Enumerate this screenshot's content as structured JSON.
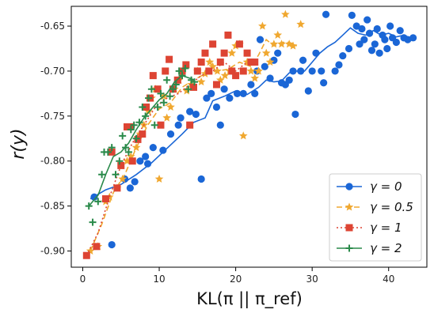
{
  "chart_data": {
    "type": "scatter",
    "xlabel": "KL(π || π_ref)",
    "ylabel": "r(y)",
    "xlim": [
      -1.5,
      45
    ],
    "ylim": [
      -0.918,
      -0.628
    ],
    "x_ticks": [
      0,
      10,
      20,
      30,
      40
    ],
    "y_ticks": [
      -0.9,
      -0.85,
      -0.8,
      -0.75,
      -0.7,
      -0.65
    ],
    "x_tick_labels": [
      "0",
      "10",
      "20",
      "30",
      "40"
    ],
    "y_tick_labels": [
      "-0.90",
      "-0.85",
      "-0.80",
      "-0.75",
      "-0.70",
      "-0.65"
    ],
    "grid": false,
    "legend_position": "bottom-right",
    "series": [
      {
        "name": "γ = 0",
        "color": "#1a66d6",
        "marker": "circle",
        "line_style": "solid",
        "points": [
          [
            1.5,
            -0.84
          ],
          [
            3.8,
            -0.893
          ],
          [
            5.5,
            -0.82
          ],
          [
            6.2,
            -0.83
          ],
          [
            6.8,
            -0.823
          ],
          [
            7.5,
            -0.8
          ],
          [
            8.2,
            -0.795
          ],
          [
            8.5,
            -0.803
          ],
          [
            9.2,
            -0.785
          ],
          [
            10.5,
            -0.788
          ],
          [
            11.5,
            -0.77
          ],
          [
            12.5,
            -0.76
          ],
          [
            12.8,
            -0.752
          ],
          [
            14.0,
            -0.745
          ],
          [
            14.8,
            -0.748
          ],
          [
            15.5,
            -0.82
          ],
          [
            16.2,
            -0.73
          ],
          [
            16.8,
            -0.725
          ],
          [
            17.5,
            -0.74
          ],
          [
            18.0,
            -0.76
          ],
          [
            18.5,
            -0.72
          ],
          [
            19.2,
            -0.73
          ],
          [
            20.2,
            -0.725
          ],
          [
            21.0,
            -0.725
          ],
          [
            22.0,
            -0.715
          ],
          [
            22.5,
            -0.725
          ],
          [
            22.8,
            -0.7
          ],
          [
            23.2,
            -0.665
          ],
          [
            23.8,
            -0.695
          ],
          [
            24.5,
            -0.708
          ],
          [
            25.0,
            -0.688
          ],
          [
            25.5,
            -0.68
          ],
          [
            26.0,
            -0.713
          ],
          [
            26.5,
            -0.715
          ],
          [
            27.0,
            -0.71
          ],
          [
            27.5,
            -0.7
          ],
          [
            27.8,
            -0.748
          ],
          [
            28.5,
            -0.7
          ],
          [
            28.8,
            -0.688
          ],
          [
            29.5,
            -0.722
          ],
          [
            30.0,
            -0.7
          ],
          [
            30.5,
            -0.68
          ],
          [
            31.2,
            -0.7
          ],
          [
            31.5,
            -0.713
          ],
          [
            31.8,
            -0.637
          ],
          [
            33.0,
            -0.7
          ],
          [
            33.5,
            -0.693
          ],
          [
            34.0,
            -0.683
          ],
          [
            34.8,
            -0.675
          ],
          [
            35.2,
            -0.638
          ],
          [
            35.8,
            -0.65
          ],
          [
            36.2,
            -0.67
          ],
          [
            36.5,
            -0.653
          ],
          [
            36.8,
            -0.665
          ],
          [
            37.2,
            -0.643
          ],
          [
            37.5,
            -0.658
          ],
          [
            37.8,
            -0.677
          ],
          [
            38.2,
            -0.67
          ],
          [
            38.5,
            -0.653
          ],
          [
            38.8,
            -0.68
          ],
          [
            39.2,
            -0.66
          ],
          [
            39.5,
            -0.665
          ],
          [
            39.8,
            -0.675
          ],
          [
            40.2,
            -0.65
          ],
          [
            40.5,
            -0.663
          ],
          [
            41.0,
            -0.668
          ],
          [
            41.5,
            -0.655
          ],
          [
            42.0,
            -0.663
          ],
          [
            42.5,
            -0.665
          ],
          [
            43.2,
            -0.663
          ]
        ],
        "line": [
          [
            1.0,
            -0.842
          ],
          [
            3.0,
            -0.832
          ],
          [
            5.0,
            -0.826
          ],
          [
            7.0,
            -0.815
          ],
          [
            9.0,
            -0.802
          ],
          [
            11.0,
            -0.786
          ],
          [
            13.0,
            -0.77
          ],
          [
            14.5,
            -0.757
          ],
          [
            16.0,
            -0.752
          ],
          [
            17.0,
            -0.733
          ],
          [
            18.5,
            -0.728
          ],
          [
            20.0,
            -0.722
          ],
          [
            21.5,
            -0.726
          ],
          [
            23.0,
            -0.718
          ],
          [
            24.0,
            -0.71
          ],
          [
            25.0,
            -0.712
          ],
          [
            26.0,
            -0.711
          ],
          [
            27.0,
            -0.702
          ],
          [
            28.0,
            -0.7
          ],
          [
            29.0,
            -0.7
          ],
          [
            30.0,
            -0.69
          ],
          [
            31.0,
            -0.68
          ],
          [
            32.0,
            -0.673
          ],
          [
            33.0,
            -0.668
          ],
          [
            34.0,
            -0.66
          ],
          [
            35.0,
            -0.652
          ],
          [
            36.0,
            -0.658
          ],
          [
            37.0,
            -0.66
          ],
          [
            38.0,
            -0.655
          ],
          [
            39.0,
            -0.66
          ],
          [
            40.0,
            -0.658
          ],
          [
            41.0,
            -0.662
          ],
          [
            42.0,
            -0.66
          ],
          [
            43.0,
            -0.664
          ]
        ]
      },
      {
        "name": "γ = 0.5",
        "color": "#f0a830",
        "marker": "star",
        "line_style": "dashed",
        "points": [
          [
            1.0,
            -0.9
          ],
          [
            2.0,
            -0.895
          ],
          [
            3.0,
            -0.845
          ],
          [
            3.5,
            -0.84
          ],
          [
            4.5,
            -0.83
          ],
          [
            5.2,
            -0.82
          ],
          [
            5.8,
            -0.8
          ],
          [
            6.3,
            -0.795
          ],
          [
            7.0,
            -0.785
          ],
          [
            7.5,
            -0.77
          ],
          [
            8.0,
            -0.76
          ],
          [
            8.6,
            -0.745
          ],
          [
            9.0,
            -0.73
          ],
          [
            9.5,
            -0.72
          ],
          [
            10.0,
            -0.82
          ],
          [
            10.6,
            -0.728
          ],
          [
            11.0,
            -0.752
          ],
          [
            11.5,
            -0.74
          ],
          [
            12.0,
            -0.72
          ],
          [
            12.6,
            -0.71
          ],
          [
            13.0,
            -0.703
          ],
          [
            13.6,
            -0.722
          ],
          [
            14.2,
            -0.715
          ],
          [
            15.0,
            -0.7
          ],
          [
            15.5,
            -0.712
          ],
          [
            16.0,
            -0.703
          ],
          [
            16.6,
            -0.69
          ],
          [
            17.0,
            -0.695
          ],
          [
            17.6,
            -0.7
          ],
          [
            18.0,
            -0.71
          ],
          [
            18.6,
            -0.705
          ],
          [
            19.2,
            -0.7
          ],
          [
            19.5,
            -0.68
          ],
          [
            20.0,
            -0.672
          ],
          [
            20.5,
            -0.67
          ],
          [
            21.0,
            -0.772
          ],
          [
            21.5,
            -0.69
          ],
          [
            22.0,
            -0.7
          ],
          [
            22.5,
            -0.708
          ],
          [
            23.0,
            -0.7
          ],
          [
            23.5,
            -0.65
          ],
          [
            24.0,
            -0.68
          ],
          [
            24.5,
            -0.69
          ],
          [
            25.0,
            -0.67
          ],
          [
            25.5,
            -0.66
          ],
          [
            26.0,
            -0.67
          ],
          [
            26.5,
            -0.637
          ],
          [
            27.0,
            -0.67
          ],
          [
            27.5,
            -0.672
          ],
          [
            28.5,
            -0.648
          ]
        ],
        "line": [
          [
            1.0,
            -0.9
          ],
          [
            2.5,
            -0.87
          ],
          [
            4.0,
            -0.835
          ],
          [
            5.5,
            -0.815
          ],
          [
            7.0,
            -0.785
          ],
          [
            8.5,
            -0.76
          ],
          [
            10.0,
            -0.742
          ],
          [
            11.5,
            -0.735
          ],
          [
            13.0,
            -0.718
          ],
          [
            14.5,
            -0.71
          ],
          [
            16.0,
            -0.703
          ],
          [
            17.5,
            -0.7
          ],
          [
            19.0,
            -0.698
          ],
          [
            20.5,
            -0.69
          ],
          [
            22.0,
            -0.695
          ],
          [
            23.0,
            -0.682
          ],
          [
            24.0,
            -0.665
          ],
          [
            25.0,
            -0.672
          ],
          [
            26.0,
            -0.668
          ],
          [
            27.0,
            -0.668
          ],
          [
            28.0,
            -0.672
          ]
        ]
      },
      {
        "name": "γ = 1",
        "color": "#dd4433",
        "marker": "square",
        "line_style": "dotted",
        "points": [
          [
            0.5,
            -0.905
          ],
          [
            1.8,
            -0.895
          ],
          [
            3.0,
            -0.842
          ],
          [
            3.8,
            -0.79
          ],
          [
            4.5,
            -0.83
          ],
          [
            5.0,
            -0.805
          ],
          [
            5.8,
            -0.762
          ],
          [
            6.2,
            -0.762
          ],
          [
            6.5,
            -0.8
          ],
          [
            7.2,
            -0.776
          ],
          [
            7.8,
            -0.77
          ],
          [
            8.3,
            -0.74
          ],
          [
            8.8,
            -0.73
          ],
          [
            9.2,
            -0.705
          ],
          [
            9.8,
            -0.72
          ],
          [
            10.2,
            -0.76
          ],
          [
            10.8,
            -0.7
          ],
          [
            11.3,
            -0.687
          ],
          [
            11.8,
            -0.72
          ],
          [
            12.4,
            -0.71
          ],
          [
            13.0,
            -0.7
          ],
          [
            13.5,
            -0.693
          ],
          [
            14.0,
            -0.76
          ],
          [
            14.5,
            -0.718
          ],
          [
            15.0,
            -0.7
          ],
          [
            15.5,
            -0.69
          ],
          [
            16.0,
            -0.68
          ],
          [
            16.5,
            -0.7
          ],
          [
            17.0,
            -0.67
          ],
          [
            17.5,
            -0.715
          ],
          [
            18.0,
            -0.69
          ],
          [
            18.5,
            -0.68
          ],
          [
            19.0,
            -0.66
          ],
          [
            19.5,
            -0.7
          ],
          [
            20.0,
            -0.705
          ],
          [
            20.5,
            -0.67
          ],
          [
            21.0,
            -0.7
          ],
          [
            21.5,
            -0.68
          ],
          [
            22.0,
            -0.69
          ],
          [
            22.5,
            -0.69
          ]
        ],
        "line": [
          [
            0.5,
            -0.905
          ],
          [
            2.0,
            -0.88
          ],
          [
            3.5,
            -0.84
          ],
          [
            5.0,
            -0.805
          ],
          [
            6.5,
            -0.78
          ],
          [
            8.0,
            -0.76
          ],
          [
            9.5,
            -0.74
          ],
          [
            11.0,
            -0.73
          ],
          [
            12.5,
            -0.725
          ],
          [
            14.0,
            -0.715
          ],
          [
            15.5,
            -0.705
          ],
          [
            17.0,
            -0.7
          ],
          [
            18.5,
            -0.69
          ],
          [
            20.0,
            -0.7
          ],
          [
            21.5,
            -0.69
          ],
          [
            22.5,
            -0.693
          ]
        ]
      },
      {
        "name": "γ = 2",
        "color": "#2a8a4a",
        "marker": "plus",
        "line_style": "solid",
        "points": [
          [
            0.8,
            -0.85
          ],
          [
            1.3,
            -0.868
          ],
          [
            2.0,
            -0.845
          ],
          [
            2.5,
            -0.815
          ],
          [
            2.8,
            -0.79
          ],
          [
            3.3,
            -0.79
          ],
          [
            3.8,
            -0.785
          ],
          [
            4.3,
            -0.815
          ],
          [
            4.8,
            -0.8
          ],
          [
            5.2,
            -0.772
          ],
          [
            5.6,
            -0.785
          ],
          [
            6.0,
            -0.79
          ],
          [
            6.3,
            -0.765
          ],
          [
            6.7,
            -0.76
          ],
          [
            7.0,
            -0.775
          ],
          [
            7.4,
            -0.757
          ],
          [
            7.8,
            -0.74
          ],
          [
            8.2,
            -0.75
          ],
          [
            8.6,
            -0.73
          ],
          [
            9.0,
            -0.72
          ],
          [
            9.4,
            -0.76
          ],
          [
            9.8,
            -0.74
          ],
          [
            10.2,
            -0.725
          ],
          [
            10.6,
            -0.735
          ],
          [
            11.0,
            -0.71
          ],
          [
            11.4,
            -0.728
          ],
          [
            11.8,
            -0.72
          ],
          [
            12.2,
            -0.715
          ],
          [
            12.6,
            -0.7
          ],
          [
            13.0,
            -0.705
          ],
          [
            13.4,
            -0.697
          ],
          [
            13.8,
            -0.72
          ],
          [
            14.2,
            -0.71
          ],
          [
            14.6,
            -0.712
          ]
        ],
        "line": [
          [
            0.8,
            -0.85
          ],
          [
            2.0,
            -0.838
          ],
          [
            3.0,
            -0.815
          ],
          [
            4.0,
            -0.795
          ],
          [
            5.0,
            -0.79
          ],
          [
            6.0,
            -0.78
          ],
          [
            7.0,
            -0.765
          ],
          [
            8.0,
            -0.752
          ],
          [
            9.0,
            -0.742
          ],
          [
            10.0,
            -0.732
          ],
          [
            11.0,
            -0.725
          ],
          [
            12.0,
            -0.712
          ],
          [
            13.0,
            -0.705
          ],
          [
            14.0,
            -0.708
          ],
          [
            14.6,
            -0.71
          ]
        ]
      }
    ]
  }
}
